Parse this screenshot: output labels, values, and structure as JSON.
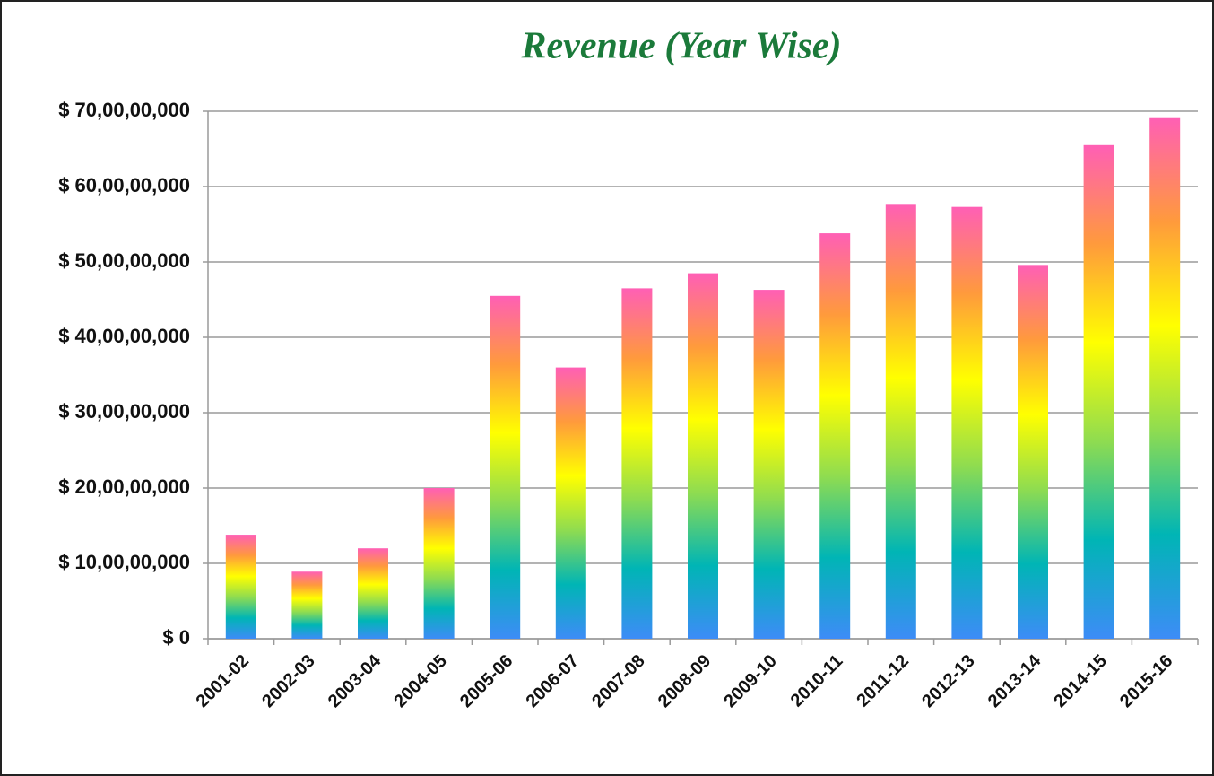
{
  "chart_data": {
    "type": "bar",
    "title": "Revenue (Year Wise)",
    "categories": [
      "2001-02",
      "2002-03",
      "2003-04",
      "2004-05",
      "2005-06",
      "2006-07",
      "2007-08",
      "2008-09",
      "2009-10",
      "2010-11",
      "2011-12",
      "2012-13",
      "2013-14",
      "2014-15",
      "2015-16"
    ],
    "values": [
      138000000,
      89000000,
      120000000,
      200000000,
      455000000,
      360000000,
      465000000,
      485000000,
      463000000,
      538000000,
      577000000,
      573000000,
      496000000,
      655000000,
      692000000
    ],
    "gradient": [
      "#3d8cf7",
      "#00b5b5",
      "#8fdc50",
      "#ffff00",
      "#ff9a3c",
      "#ff5fb5"
    ],
    "ylim": [
      0,
      700000000
    ],
    "yticks": [
      {
        "value": 0,
        "label": "$ 0"
      },
      {
        "value": 100000000,
        "label": "$ 10,00,00,000"
      },
      {
        "value": 200000000,
        "label": "$ 20,00,00,000"
      },
      {
        "value": 300000000,
        "label": "$ 30,00,00,000"
      },
      {
        "value": 400000000,
        "label": "$ 40,00,00,000"
      },
      {
        "value": 500000000,
        "label": "$ 50,00,00,000"
      },
      {
        "value": 600000000,
        "label": "$ 60,00,00,000"
      },
      {
        "value": 700000000,
        "label": "$ 70,00,00,000"
      }
    ],
    "grid": true
  }
}
